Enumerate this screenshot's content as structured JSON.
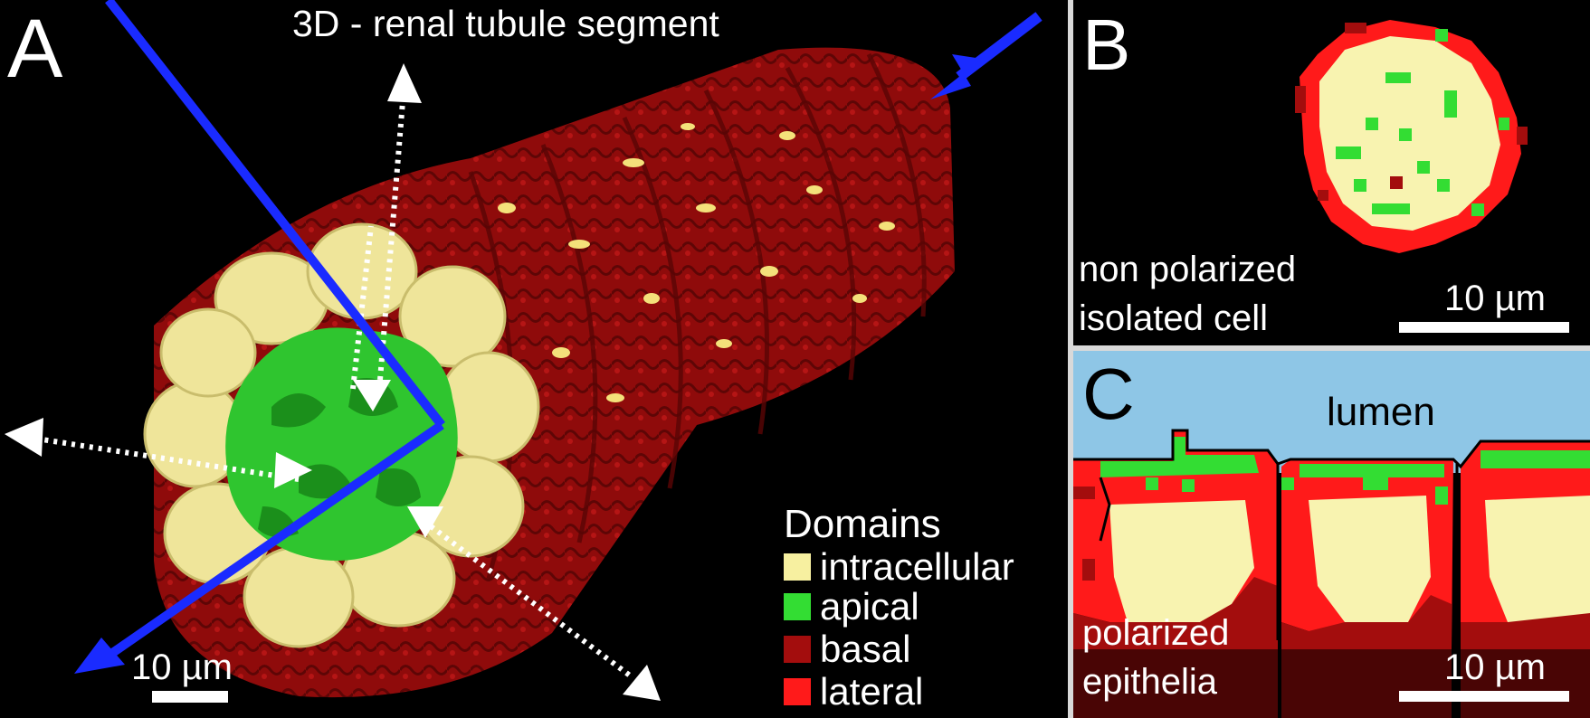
{
  "panels": {
    "a": {
      "label": "A",
      "title": "3D - renal tubule segment",
      "scale": "10 µm"
    },
    "b": {
      "label": "B",
      "caption_line1": "non polarized",
      "caption_line2": "isolated cell",
      "scale": "10 µm"
    },
    "c": {
      "label": "C",
      "lumen": "lumen",
      "caption_line1": "polarized",
      "caption_line2": "epithelia",
      "scale": "10 µm"
    }
  },
  "legend": {
    "title": "Domains",
    "items": [
      {
        "label": "intracellular",
        "color": "#f7f0a0"
      },
      {
        "label": "apical",
        "color": "#33dd33"
      },
      {
        "label": "basal",
        "color": "#a30d0d"
      },
      {
        "label": "lateral",
        "color": "#ff1a1a"
      }
    ]
  },
  "colors": {
    "background": "#000000",
    "lumen": "#8ec6e6",
    "axis_arrow": "#1a2bff",
    "direction_arrow": "#ffffff"
  }
}
